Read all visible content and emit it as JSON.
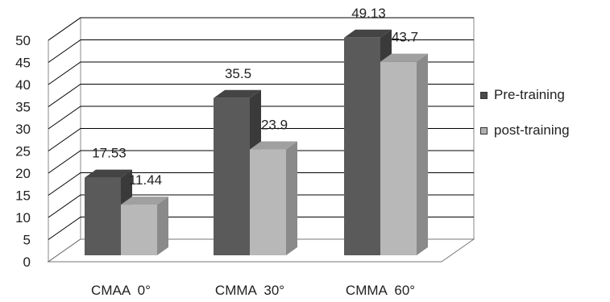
{
  "chart_data": {
    "type": "bar",
    "categories": [
      "CMAA  0°",
      "CMMA  30°",
      "CMMA  60°"
    ],
    "series": [
      {
        "name": "Pre-training",
        "values": [
          17.53,
          35.5,
          49.13
        ]
      },
      {
        "name": "post-training",
        "values": [
          11.44,
          23.9,
          43.7
        ]
      }
    ],
    "y_ticks": [
      "0",
      "5",
      "10",
      "15",
      "20",
      "25",
      "30",
      "35",
      "40",
      "45",
      "50"
    ],
    "data_labels": [
      [
        "17.53",
        "35.5",
        "49.13"
      ],
      [
        "11.44",
        "23.9",
        "43.7"
      ]
    ],
    "ylim": [
      0,
      50
    ],
    "grid": true,
    "legend_position": "right",
    "style": "3d-bar",
    "colors": {
      "pre_front": "#5a5a5a",
      "pre_side": "#3a3a3a",
      "pre_top": "#444444",
      "post_front": "#b8b8b8",
      "post_side": "#8a8a8a",
      "post_top": "#a0a0a0",
      "grid": "#000000",
      "wall": "#ffffff"
    }
  },
  "legend": {
    "items": [
      {
        "label": "Pre-training",
        "color": "#4a4a4a"
      },
      {
        "label": "post-training",
        "color": "#b0b0b0"
      }
    ]
  }
}
